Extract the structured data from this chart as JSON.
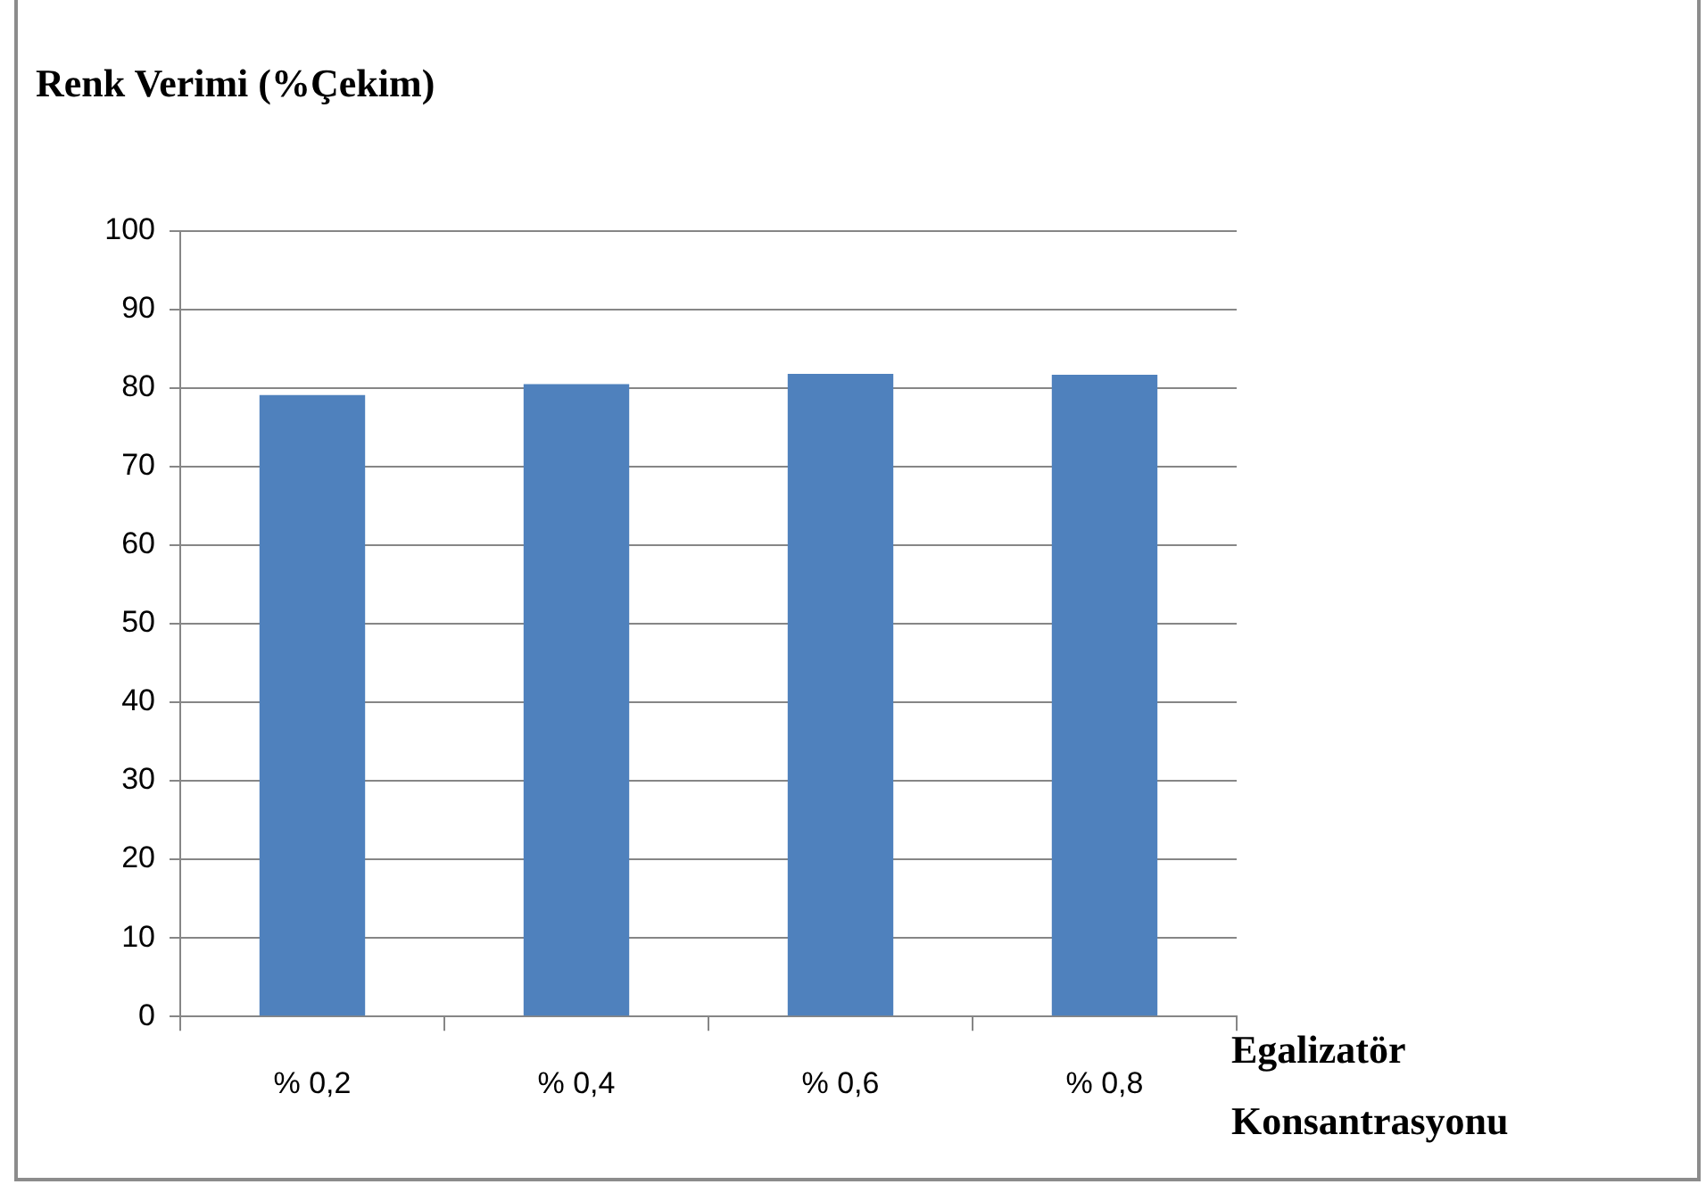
{
  "chart_data": {
    "type": "bar",
    "title": "Renk Verimi (%Çekim)",
    "xlabel": "Egalizatör Konsantrasyonu",
    "categories": [
      "% 0,2",
      "% 0,4",
      "% 0,6",
      "% 0,8"
    ],
    "values": [
      79.1,
      80.5,
      81.8,
      81.7
    ],
    "color": "#4f81bd",
    "ylim": [
      0,
      100
    ],
    "yticks": [
      0,
      10,
      20,
      30,
      40,
      50,
      60,
      70,
      80,
      90,
      100
    ],
    "grid": "y"
  }
}
